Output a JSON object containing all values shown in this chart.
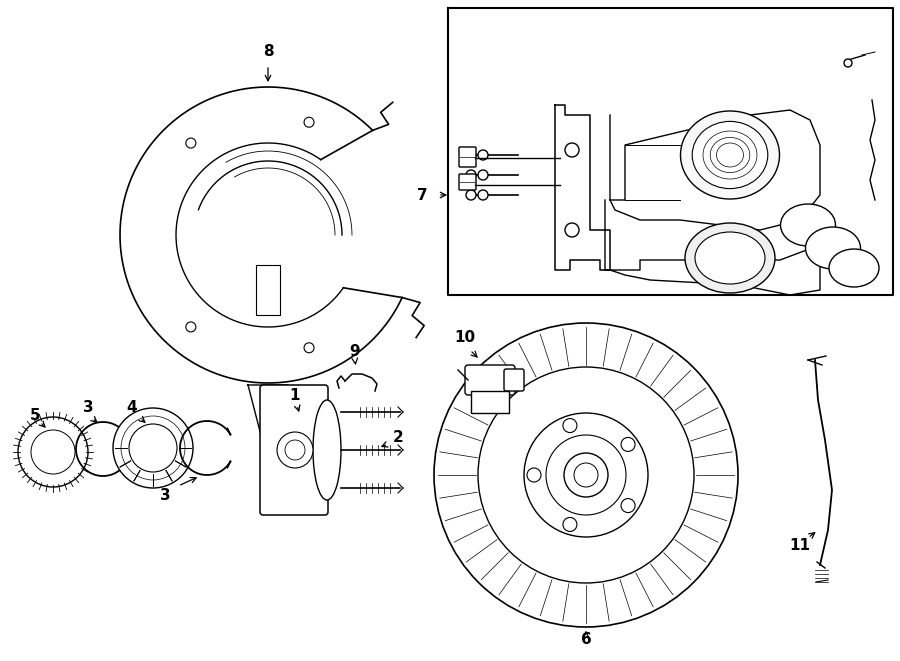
{
  "bg_color": "#ffffff",
  "line_color": "#000000",
  "lw": 1.0,
  "fig_w": 9.0,
  "fig_h": 6.61,
  "dpi": 100
}
